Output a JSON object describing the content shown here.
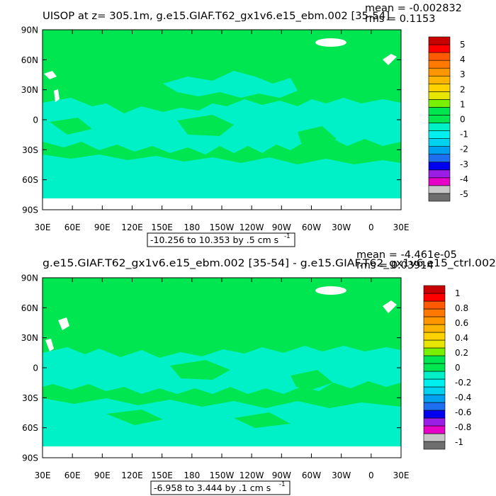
{
  "colors": {
    "land": "#ffffff",
    "background": "#ffffff",
    "palette": [
      "#6e6e6e",
      "#c8c8c8",
      "#e600c8",
      "#9b1ee6",
      "#0000f0",
      "#1e6ef0",
      "#00a0f0",
      "#00d2f0",
      "#00f0f0",
      "#00f0c8",
      "#00e650",
      "#00e650",
      "#78f000",
      "#e6e600",
      "#ffd200",
      "#ffb400",
      "#ff9600",
      "#ff7800",
      "#ff5a00",
      "#ff0000",
      "#c80000"
    ]
  },
  "chart_data": [
    {
      "type": "heatmap",
      "title": "UISOP at z= 305.1m, g.e15.GIAF.T62_gx1v6.e15_ebm.002 [35-54]",
      "stats": {
        "mean": "mean = -0.002832",
        "rms": "rms = 0.1153"
      },
      "range_label": "-10.256 to 10.353 by .5 cm s",
      "unit_superscript": "-1",
      "x_ticks": [
        "30E",
        "60E",
        "90E",
        "120E",
        "150E",
        "180",
        "150W",
        "120W",
        "90W",
        "60W",
        "30W",
        "0",
        "30E"
      ],
      "y_ticks": [
        "90N",
        "60N",
        "30N",
        "0",
        "30S",
        "60S",
        "90S"
      ],
      "colorbar_labels": [
        "5",
        "4",
        "3",
        "2",
        "1",
        "0",
        "-1",
        "-2",
        "-3",
        "-4",
        "-5"
      ],
      "dominant_values": [
        "0",
        "-0.5"
      ]
    },
    {
      "type": "heatmap",
      "title": "g.e15.GIAF.T62_gx1v6.e15_ebm.002 [35-54] - g.e15.GIAF.T62_gx1v6.e15_ctrl.002",
      "stats": {
        "mean": "mean = -4.461e-05",
        "rms": "rms = 0.03914"
      },
      "range_label": "-6.958 to 3.444 by .1 cm s",
      "unit_superscript": "-1",
      "x_ticks": [
        "30E",
        "60E",
        "90E",
        "120E",
        "150E",
        "180",
        "150W",
        "120W",
        "90W",
        "60W",
        "30W",
        "0",
        "30E"
      ],
      "y_ticks": [
        "90N",
        "60N",
        "30N",
        "0",
        "30S",
        "60S",
        "90S"
      ],
      "colorbar_labels": [
        "1",
        "0.8",
        "0.6",
        "0.4",
        "0.2",
        "0",
        "-0.2",
        "-0.4",
        "-0.6",
        "-0.8",
        "-1"
      ],
      "dominant_values": [
        "0",
        "-0.1"
      ]
    }
  ]
}
